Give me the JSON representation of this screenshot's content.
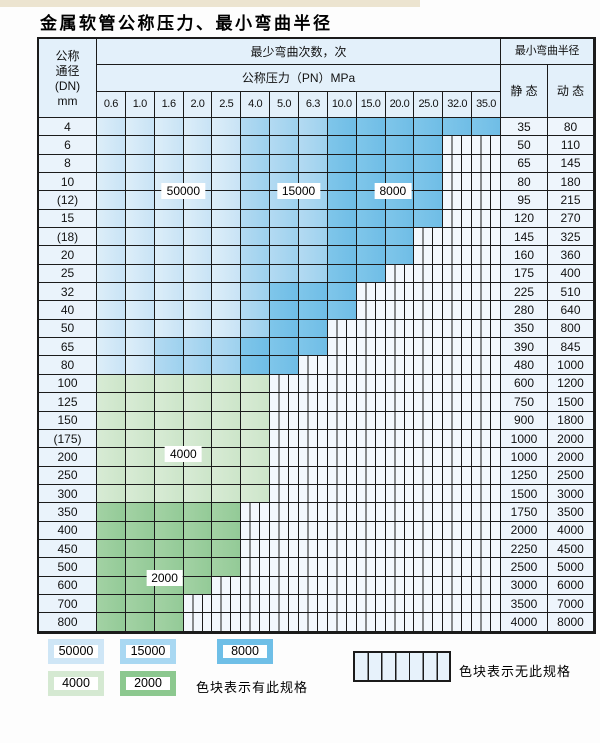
{
  "title": "金属软管公称压力、最小弯曲半径",
  "table": {
    "header": {
      "dn_lines": [
        "公称",
        "通径",
        "(DN)",
        "mm"
      ],
      "bend_cycles_label": "最少弯曲次数，次",
      "bend_radius_label": "最小弯曲半径",
      "pressure_label": "公称压力（PN）MPa",
      "static_label": "静 态",
      "dynamic_label": "动 态",
      "pressures": [
        "0.6",
        "1.0",
        "1.6",
        "2.0",
        "2.5",
        "4.0",
        "5.0",
        "6.3",
        "10.0",
        "15.0",
        "20.0",
        "25.0",
        "32.0",
        "35.0"
      ]
    },
    "zone_meaning": {
      "b1": "50000次",
      "b2": "15000次",
      "b3": "8000次",
      "g1": "4000次",
      "g2": "2000次",
      "x": "无此规格"
    },
    "rows": [
      {
        "dn": "4",
        "zones": [
          "b1",
          "b1",
          "b1",
          "b1",
          "b1",
          "b2",
          "b2",
          "b2",
          "b3",
          "b3",
          "b3",
          "b3",
          "b3",
          "b3"
        ],
        "static": "35",
        "dynamic": "80"
      },
      {
        "dn": "6",
        "zones": [
          "b1",
          "b1",
          "b1",
          "b1",
          "b1",
          "b2",
          "b2",
          "b2",
          "b3",
          "b3",
          "b3",
          "b3",
          "x",
          "x"
        ],
        "static": "50",
        "dynamic": "110"
      },
      {
        "dn": "8",
        "zones": [
          "b1",
          "b1",
          "b1",
          "b1",
          "b1",
          "b2",
          "b2",
          "b2",
          "b3",
          "b3",
          "b3",
          "b3",
          "x",
          "x"
        ],
        "static": "65",
        "dynamic": "145"
      },
      {
        "dn": "10",
        "zones": [
          "b1",
          "b1",
          "b1",
          "b1",
          "b1",
          "b2",
          "b2",
          "b2",
          "b3",
          "b3",
          "b3",
          "b3",
          "x",
          "x"
        ],
        "static": "80",
        "dynamic": "180"
      },
      {
        "dn": "(12)",
        "zones": [
          "b1",
          "b1",
          "b1",
          "b1",
          "b1",
          "b2",
          "b2",
          "b2",
          "b3",
          "b3",
          "b3",
          "b3",
          "x",
          "x"
        ],
        "static": "95",
        "dynamic": "215"
      },
      {
        "dn": "15",
        "zones": [
          "b1",
          "b1",
          "b1",
          "b1",
          "b1",
          "b2",
          "b2",
          "b2",
          "b3",
          "b3",
          "b3",
          "b3",
          "x",
          "x"
        ],
        "static": "120",
        "dynamic": "270"
      },
      {
        "dn": "(18)",
        "zones": [
          "b1",
          "b1",
          "b1",
          "b1",
          "b1",
          "b2",
          "b2",
          "b2",
          "b3",
          "b3",
          "b3",
          "x",
          "x",
          "x"
        ],
        "static": "145",
        "dynamic": "325"
      },
      {
        "dn": "20",
        "zones": [
          "b1",
          "b1",
          "b1",
          "b1",
          "b1",
          "b2",
          "b2",
          "b2",
          "b3",
          "b3",
          "b3",
          "x",
          "x",
          "x"
        ],
        "static": "160",
        "dynamic": "360"
      },
      {
        "dn": "25",
        "zones": [
          "b1",
          "b1",
          "b1",
          "b1",
          "b1",
          "b2",
          "b2",
          "b2",
          "b3",
          "b3",
          "x",
          "x",
          "x",
          "x"
        ],
        "static": "175",
        "dynamic": "400"
      },
      {
        "dn": "32",
        "zones": [
          "b1",
          "b1",
          "b1",
          "b1",
          "b1",
          "b2",
          "b3",
          "b3",
          "b3",
          "x",
          "x",
          "x",
          "x",
          "x"
        ],
        "static": "225",
        "dynamic": "510"
      },
      {
        "dn": "40",
        "zones": [
          "b1",
          "b1",
          "b1",
          "b1",
          "b1",
          "b2",
          "b3",
          "b3",
          "b3",
          "x",
          "x",
          "x",
          "x",
          "x"
        ],
        "static": "280",
        "dynamic": "640"
      },
      {
        "dn": "50",
        "zones": [
          "b1",
          "b1",
          "b1",
          "b1",
          "b1",
          "b2",
          "b3",
          "b3",
          "x",
          "x",
          "x",
          "x",
          "x",
          "x"
        ],
        "static": "350",
        "dynamic": "800"
      },
      {
        "dn": "65",
        "zones": [
          "b1",
          "b1",
          "b2",
          "b2",
          "b2",
          "b3",
          "b3",
          "b3",
          "x",
          "x",
          "x",
          "x",
          "x",
          "x"
        ],
        "static": "390",
        "dynamic": "845"
      },
      {
        "dn": "80",
        "zones": [
          "b1",
          "b1",
          "b2",
          "b2",
          "b2",
          "b3",
          "b3",
          "x",
          "x",
          "x",
          "x",
          "x",
          "x",
          "x"
        ],
        "static": "480",
        "dynamic": "1000"
      },
      {
        "dn": "100",
        "zones": [
          "g1",
          "g1",
          "g1",
          "g1",
          "g1",
          "g1",
          "x",
          "x",
          "x",
          "x",
          "x",
          "x",
          "x",
          "x"
        ],
        "static": "600",
        "dynamic": "1200"
      },
      {
        "dn": "125",
        "zones": [
          "g1",
          "g1",
          "g1",
          "g1",
          "g1",
          "g1",
          "x",
          "x",
          "x",
          "x",
          "x",
          "x",
          "x",
          "x"
        ],
        "static": "750",
        "dynamic": "1500"
      },
      {
        "dn": "150",
        "zones": [
          "g1",
          "g1",
          "g1",
          "g1",
          "g1",
          "g1",
          "x",
          "x",
          "x",
          "x",
          "x",
          "x",
          "x",
          "x"
        ],
        "static": "900",
        "dynamic": "1800"
      },
      {
        "dn": "(175)",
        "zones": [
          "g1",
          "g1",
          "g1",
          "g1",
          "g1",
          "g1",
          "x",
          "x",
          "x",
          "x",
          "x",
          "x",
          "x",
          "x"
        ],
        "static": "1000",
        "dynamic": "2000"
      },
      {
        "dn": "200",
        "zones": [
          "g1",
          "g1",
          "g1",
          "g1",
          "g1",
          "g1",
          "x",
          "x",
          "x",
          "x",
          "x",
          "x",
          "x",
          "x"
        ],
        "static": "1000",
        "dynamic": "2000"
      },
      {
        "dn": "250",
        "zones": [
          "g1",
          "g1",
          "g1",
          "g1",
          "g1",
          "g1",
          "x",
          "x",
          "x",
          "x",
          "x",
          "x",
          "x",
          "x"
        ],
        "static": "1250",
        "dynamic": "2500"
      },
      {
        "dn": "300",
        "zones": [
          "g1",
          "g1",
          "g1",
          "g1",
          "g1",
          "g1",
          "x",
          "x",
          "x",
          "x",
          "x",
          "x",
          "x",
          "x"
        ],
        "static": "1500",
        "dynamic": "3000"
      },
      {
        "dn": "350",
        "zones": [
          "g2",
          "g2",
          "g2",
          "g2",
          "g2",
          "x",
          "x",
          "x",
          "x",
          "x",
          "x",
          "x",
          "x",
          "x"
        ],
        "static": "1750",
        "dynamic": "3500"
      },
      {
        "dn": "400",
        "zones": [
          "g2",
          "g2",
          "g2",
          "g2",
          "g2",
          "x",
          "x",
          "x",
          "x",
          "x",
          "x",
          "x",
          "x",
          "x"
        ],
        "static": "2000",
        "dynamic": "4000"
      },
      {
        "dn": "450",
        "zones": [
          "g2",
          "g2",
          "g2",
          "g2",
          "g2",
          "x",
          "x",
          "x",
          "x",
          "x",
          "x",
          "x",
          "x",
          "x"
        ],
        "static": "2250",
        "dynamic": "4500"
      },
      {
        "dn": "500",
        "zones": [
          "g2",
          "g2",
          "g2",
          "g2",
          "g2",
          "x",
          "x",
          "x",
          "x",
          "x",
          "x",
          "x",
          "x",
          "x"
        ],
        "static": "2500",
        "dynamic": "5000"
      },
      {
        "dn": "600",
        "zones": [
          "g2",
          "g2",
          "g2",
          "g2",
          "x",
          "x",
          "x",
          "x",
          "x",
          "x",
          "x",
          "x",
          "x",
          "x"
        ],
        "static": "3000",
        "dynamic": "6000"
      },
      {
        "dn": "700",
        "zones": [
          "g2",
          "g2",
          "g2",
          "x",
          "x",
          "x",
          "x",
          "x",
          "x",
          "x",
          "x",
          "x",
          "x",
          "x"
        ],
        "static": "3500",
        "dynamic": "7000"
      },
      {
        "dn": "800",
        "zones": [
          "g2",
          "g2",
          "g2",
          "x",
          "x",
          "x",
          "x",
          "x",
          "x",
          "x",
          "x",
          "x",
          "x",
          "x"
        ],
        "static": "4000",
        "dynamic": "8000"
      }
    ],
    "overlays": [
      {
        "text": "50000",
        "col_start": 2,
        "col_end": 3,
        "row_boundary_after": 3
      },
      {
        "text": "15000",
        "col_start": 6,
        "col_end": 7,
        "row_boundary_after": 3
      },
      {
        "text": "8000",
        "col_start": 9,
        "col_end": 10,
        "row_boundary_after": 3
      },
      {
        "text": "4000",
        "col_start": 2,
        "col_end": 3,
        "row_boundary_after": 17
      },
      {
        "text": "2000",
        "col_start": 1,
        "col_end": 2,
        "row_boundary_after": 24
      }
    ]
  },
  "legend": {
    "items": [
      {
        "value": "50000",
        "color": "#cfe6f6"
      },
      {
        "value": "15000",
        "color": "#a9d8f2"
      },
      {
        "value": "8000",
        "color": "#6fbfe7"
      },
      {
        "value": "4000",
        "color": "#d5e9d2"
      },
      {
        "value": "2000",
        "color": "#8cc88f"
      }
    ],
    "has_spec_label": "色块表示有此规格",
    "no_spec_label": "色块表示无此规格"
  },
  "colors": {
    "zone_b1": "#cfe6f6",
    "zone_b2": "#a9d8f2",
    "zone_b3": "#74c0e7",
    "zone_g1": "#d2e8d0",
    "zone_g2": "#9bce9d",
    "grid_line": "#1b1b1b",
    "header_bg": "#e3f0fa",
    "hatch_bg": "#f3f8fd"
  }
}
